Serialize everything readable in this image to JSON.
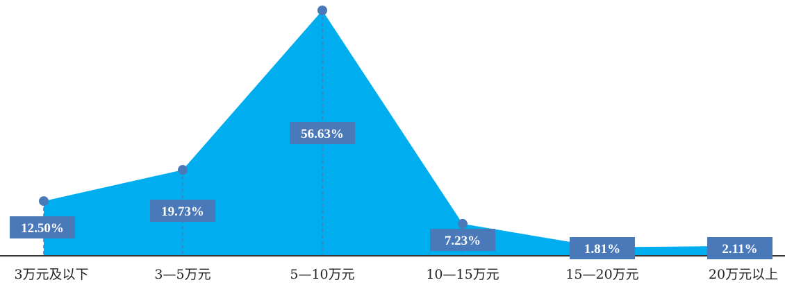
{
  "chart_data": {
    "type": "area",
    "categories": [
      "3万元及以下",
      "3—5万元",
      "5—10万元",
      "10—15万元",
      "15—20万元",
      "20万元以上"
    ],
    "values": [
      12.5,
      19.73,
      56.63,
      7.23,
      1.81,
      2.11
    ],
    "data_labels": [
      "12.50%",
      "19.73%",
      "56.63%",
      "7.23%",
      "1.81%",
      "2.11%"
    ],
    "ylim": [
      0,
      60
    ],
    "grid": false,
    "legend": "none",
    "colors": {
      "area": "#00aeef",
      "marker": "#4a79b9",
      "label_box": "#4a79b9",
      "label_text": "#ffffff",
      "axis": "#333333",
      "drop_line": "#4a79b9"
    }
  }
}
